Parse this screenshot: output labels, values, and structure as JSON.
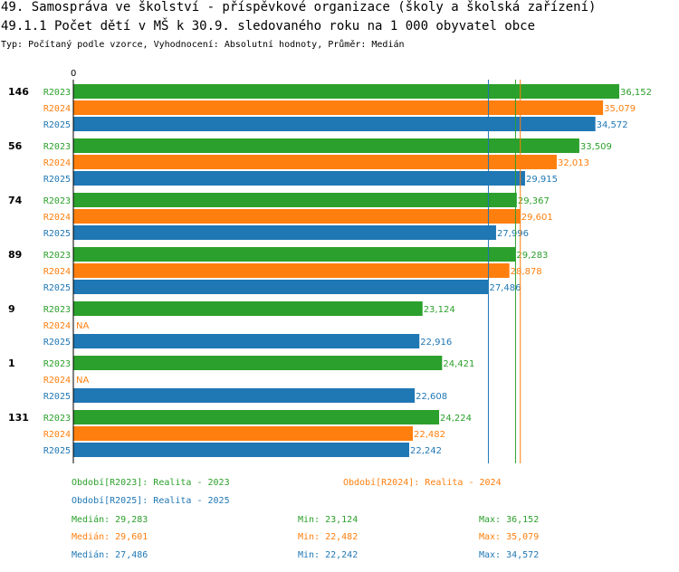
{
  "header": {
    "title": "49. Samospráva ve školství - příspěvkové organizace (školy a školská zařízení)",
    "subtitle": "49.1.1 Počet dětí v MŠ k 30.9. sledovaného roku na 1 000 obyvatel obce",
    "meta": "Typ: Počítaný podle vzorce, Vyhodnocení: Absolutní hodnoty, Průměr: Medián"
  },
  "colors": {
    "R2023": "#2ca02c",
    "R2024": "#ff7f0e",
    "R2025": "#1f77b4"
  },
  "chart_data": {
    "type": "bar",
    "orientation": "horizontal",
    "xlim": [
      0,
      36.152
    ],
    "x_tick_label": "0",
    "series_names": [
      "R2023",
      "R2024",
      "R2025"
    ],
    "groups": [
      {
        "label": "146",
        "values": [
          36.152,
          35.079,
          34.572
        ],
        "value_labels": [
          "36,152",
          "35,079",
          "34,572"
        ]
      },
      {
        "label": "56",
        "values": [
          33.509,
          32.013,
          29.915
        ],
        "value_labels": [
          "33,509",
          "32,013",
          "29,915"
        ]
      },
      {
        "label": "74",
        "values": [
          29.367,
          29.601,
          27.996
        ],
        "value_labels": [
          "29,367",
          "29,601",
          "27,996"
        ]
      },
      {
        "label": "89",
        "values": [
          29.283,
          28.878,
          27.486
        ],
        "value_labels": [
          "29,283",
          "28,878",
          "27,486"
        ]
      },
      {
        "label": "9",
        "values": [
          23.124,
          null,
          22.916
        ],
        "value_labels": [
          "23,124",
          "NA",
          "22,916"
        ]
      },
      {
        "label": "1",
        "values": [
          24.421,
          null,
          22.608
        ],
        "value_labels": [
          "24,421",
          "NA",
          "22,608"
        ]
      },
      {
        "label": "131",
        "values": [
          24.224,
          22.482,
          22.242
        ],
        "value_labels": [
          "24,224",
          "22,482",
          "22,242"
        ]
      }
    ],
    "median_lines": {
      "R2023": 29.283,
      "R2024": 29.601,
      "R2025": 27.486
    }
  },
  "legend": {
    "items": [
      {
        "key": "R2023",
        "text": "Období[R2023]: Realita - 2023"
      },
      {
        "key": "R2024",
        "text": "Období[R2024]: Realita - 2024"
      },
      {
        "key": "R2025",
        "text": "Období[R2025]: Realita - 2025"
      }
    ],
    "stats": [
      {
        "key": "R2023",
        "median": "Medián: 29,283",
        "min": "Min: 23,124",
        "max": "Max: 36,152"
      },
      {
        "key": "R2024",
        "median": "Medián: 29,601",
        "min": "Min: 22,482",
        "max": "Max: 35,079"
      },
      {
        "key": "R2025",
        "median": "Medián: 27,486",
        "min": "Min: 22,242",
        "max": "Max: 34,572"
      }
    ]
  }
}
